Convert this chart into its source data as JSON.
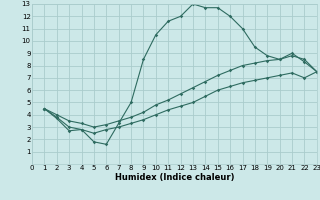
{
  "xlabel": "Humidex (Indice chaleur)",
  "xlim": [
    0,
    23
  ],
  "ylim": [
    0,
    13
  ],
  "xticks": [
    0,
    1,
    2,
    3,
    4,
    5,
    6,
    7,
    8,
    9,
    10,
    11,
    12,
    13,
    14,
    15,
    16,
    17,
    18,
    19,
    20,
    21,
    22,
    23
  ],
  "yticks": [
    1,
    2,
    3,
    4,
    5,
    6,
    7,
    8,
    9,
    10,
    11,
    12,
    13
  ],
  "bg_color": "#cce8e8",
  "grid_color": "#aacccc",
  "line_color": "#2e6b60",
  "line1_x": [
    1,
    2,
    3,
    4,
    5,
    6,
    7,
    8,
    9,
    10,
    11,
    12,
    13,
    14,
    15,
    16,
    17,
    18,
    19,
    20,
    21,
    22,
    23
  ],
  "line1_y": [
    4.5,
    3.7,
    2.7,
    2.8,
    1.8,
    1.6,
    3.3,
    5.0,
    8.5,
    10.5,
    11.6,
    12.0,
    13.0,
    12.7,
    12.7,
    12.0,
    11.0,
    9.5,
    8.8,
    8.5,
    9.0,
    8.3,
    7.5
  ],
  "line2_x": [
    1,
    2,
    3,
    4,
    5,
    6,
    7,
    8,
    9,
    10,
    11,
    12,
    13,
    14,
    15,
    16,
    17,
    18,
    19,
    20,
    21,
    22,
    23
  ],
  "line2_y": [
    4.5,
    4.0,
    3.5,
    3.3,
    3.0,
    3.2,
    3.5,
    3.8,
    4.2,
    4.8,
    5.2,
    5.7,
    6.2,
    6.7,
    7.2,
    7.6,
    8.0,
    8.2,
    8.4,
    8.5,
    8.8,
    8.5,
    7.5
  ],
  "line3_x": [
    1,
    2,
    3,
    4,
    5,
    6,
    7,
    8,
    9,
    10,
    11,
    12,
    13,
    14,
    15,
    16,
    17,
    18,
    19,
    20,
    21,
    22,
    23
  ],
  "line3_y": [
    4.5,
    3.8,
    3.0,
    2.8,
    2.5,
    2.8,
    3.0,
    3.3,
    3.6,
    4.0,
    4.4,
    4.7,
    5.0,
    5.5,
    6.0,
    6.3,
    6.6,
    6.8,
    7.0,
    7.2,
    7.4,
    7.0,
    7.5
  ]
}
